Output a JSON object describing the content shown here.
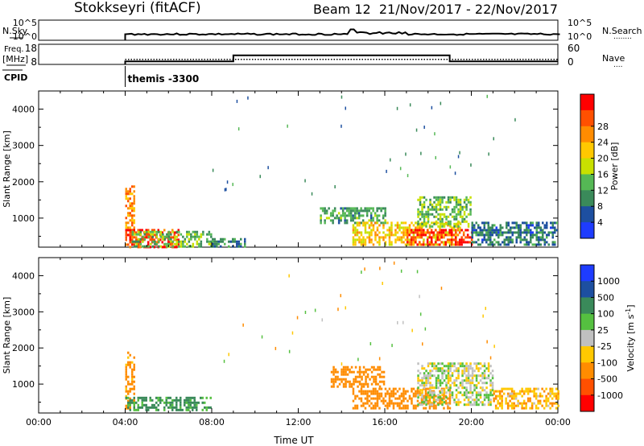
{
  "header": {
    "title": "Stokkseyri (fitACF)",
    "beam_info": "Beam 12  21/Nov/2017 - 22/Nov/2017"
  },
  "panels": {
    "nsky": {
      "left_label": "N.Sky",
      "left_ticks": [
        "10^5",
        "10^0"
      ],
      "right_ticks": [
        "10^5",
        "10^0"
      ],
      "right_label": "N.Search",
      "right_label_dots": "........"
    },
    "freq": {
      "left_label_line1": "Freq.",
      "left_label_line2": "[MHz]",
      "left_ticks": [
        "18",
        "8"
      ],
      "right_ticks": [
        "60",
        "0"
      ],
      "right_label": "Nave",
      "right_label_dots": "...."
    },
    "cpid": {
      "label": "CPID",
      "annotation": "themis -3300"
    }
  },
  "colors": {
    "power": [
      "#1e3cff",
      "#1d4fa0",
      "#3a8a5a",
      "#55b855",
      "#c8e000",
      "#ffc800",
      "#ff8c00",
      "#ff5000",
      "#ff0000"
    ],
    "velocity": [
      "#1e3cff",
      "#1d4fa0",
      "#3a8a5a",
      "#55c040",
      "#c0c0c0",
      "#ffc800",
      "#ff8c00",
      "#ff5000",
      "#ff0000"
    ]
  },
  "chart_data": [
    {
      "type": "heatmap",
      "title": "",
      "xlabel": "",
      "ylabel": "Slant Range [km]",
      "x_ticks": [
        "00:00",
        "04:00",
        "08:00",
        "12:00",
        "16:00",
        "20:00",
        "00:00"
      ],
      "y_ticks": [
        "1000",
        "2000",
        "3000",
        "4000"
      ],
      "xlim_hours": [
        0,
        24
      ],
      "ylim_km": [
        200,
        4500
      ],
      "colorbar": {
        "label": "Power [dB]",
        "ticks": [
          "4",
          "8",
          "12",
          "16",
          "20",
          "24",
          "28"
        ],
        "range": [
          0,
          30
        ]
      },
      "regions": [
        {
          "x": [
            4.0,
            4.4
          ],
          "y": [
            300,
            1900
          ],
          "value": 22
        },
        {
          "x": [
            4.0,
            6.5
          ],
          "y": [
            200,
            700
          ],
          "value": 26
        },
        {
          "x": [
            4.3,
            8.0
          ],
          "y": [
            250,
            650
          ],
          "value": 12
        },
        {
          "x": [
            8.0,
            9.5
          ],
          "y": [
            250,
            450
          ],
          "value": 8
        },
        {
          "x": [
            13.0,
            16.0
          ],
          "y": [
            900,
            1300
          ],
          "value": 10
        },
        {
          "x": [
            14.5,
            19.5
          ],
          "y": [
            300,
            900
          ],
          "value": 18
        },
        {
          "x": [
            17.0,
            20.0
          ],
          "y": [
            250,
            700
          ],
          "value": 27
        },
        {
          "x": [
            17.5,
            20.0
          ],
          "y": [
            800,
            1600
          ],
          "value": 12
        },
        {
          "x": [
            20.0,
            24.0
          ],
          "y": [
            250,
            900
          ],
          "value": 7
        }
      ]
    },
    {
      "type": "heatmap",
      "title": "",
      "xlabel": "Time UT",
      "ylabel": "Slant Range [km]",
      "x_ticks": [
        "00:00",
        "04:00",
        "08:00",
        "12:00",
        "16:00",
        "20:00",
        "00:00"
      ],
      "y_ticks": [
        "1000",
        "2000",
        "3000",
        "4000"
      ],
      "xlim_hours": [
        0,
        24
      ],
      "ylim_km": [
        200,
        4500
      ],
      "colorbar": {
        "label": "Velocity [m s^-1]",
        "ticks": [
          "1000",
          "500",
          "100",
          "25",
          "-25",
          "-100",
          "-500",
          "-1000"
        ],
        "range": [
          1200,
          -1200
        ]
      },
      "regions": [
        {
          "x": [
            4.0,
            4.4
          ],
          "y": [
            300,
            1900
          ],
          "value": -150
        },
        {
          "x": [
            4.0,
            8.0
          ],
          "y": [
            250,
            650
          ],
          "value": 120
        },
        {
          "x": [
            13.5,
            16.0
          ],
          "y": [
            900,
            1500
          ],
          "value": -250
        },
        {
          "x": [
            14.5,
            19.0
          ],
          "y": [
            300,
            900
          ],
          "value": -200
        },
        {
          "x": [
            17.5,
            21.0
          ],
          "y": [
            400,
            1600
          ],
          "value": 0
        },
        {
          "x": [
            21.0,
            24.0
          ],
          "y": [
            300,
            900
          ],
          "value": -80
        }
      ]
    }
  ],
  "sky_data": {
    "start_hour": 4.0,
    "end_hour": 24,
    "level": 0.3,
    "spike_hour": 14.5
  },
  "freq_data": {
    "steps": [
      {
        "from": 4.0,
        "to": 9.0,
        "mhz": 9.5
      },
      {
        "from": 9.0,
        "to": 19.0,
        "mhz": 12.5
      },
      {
        "from": 19.0,
        "to": 24.0,
        "mhz": 9.5
      }
    ],
    "nave": 15
  }
}
